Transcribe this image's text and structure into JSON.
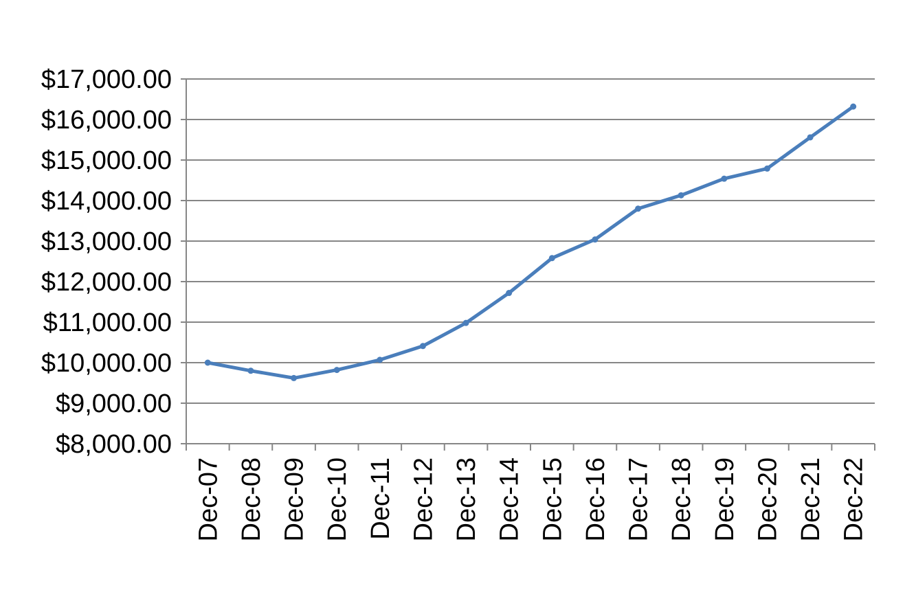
{
  "chart_data": {
    "type": "line",
    "title": "",
    "xlabel": "",
    "ylabel": "",
    "categories": [
      "Dec-07",
      "Dec-08",
      "Dec-09",
      "Dec-10",
      "Dec-11",
      "Dec-12",
      "Dec-13",
      "Dec-14",
      "Dec-15",
      "Dec-16",
      "Dec-17",
      "Dec-18",
      "Dec-19",
      "Dec-20",
      "Dec-21",
      "Dec-22"
    ],
    "y_tick_labels": [
      "$8,000.00",
      "$9,000.00",
      "$10,000.00",
      "$11,000.00",
      "$12,000.00",
      "$13,000.00",
      "$14,000.00",
      "$15,000.00",
      "$16,000.00",
      "$17,000.00"
    ],
    "ylim": [
      8000,
      17000
    ],
    "y_tick_step": 1000,
    "grid": true,
    "legend": "none",
    "series": [
      {
        "values": [
          10000,
          9800,
          9620,
          9820,
          10070,
          10410,
          10980,
          11720,
          12580,
          13040,
          13800,
          14130,
          14540,
          14790,
          15560,
          16320
        ],
        "color": "#4a7ebb"
      }
    ],
    "colors": {
      "line": "#4a7ebb",
      "grid": "#868686",
      "axis": "#868686"
    }
  }
}
